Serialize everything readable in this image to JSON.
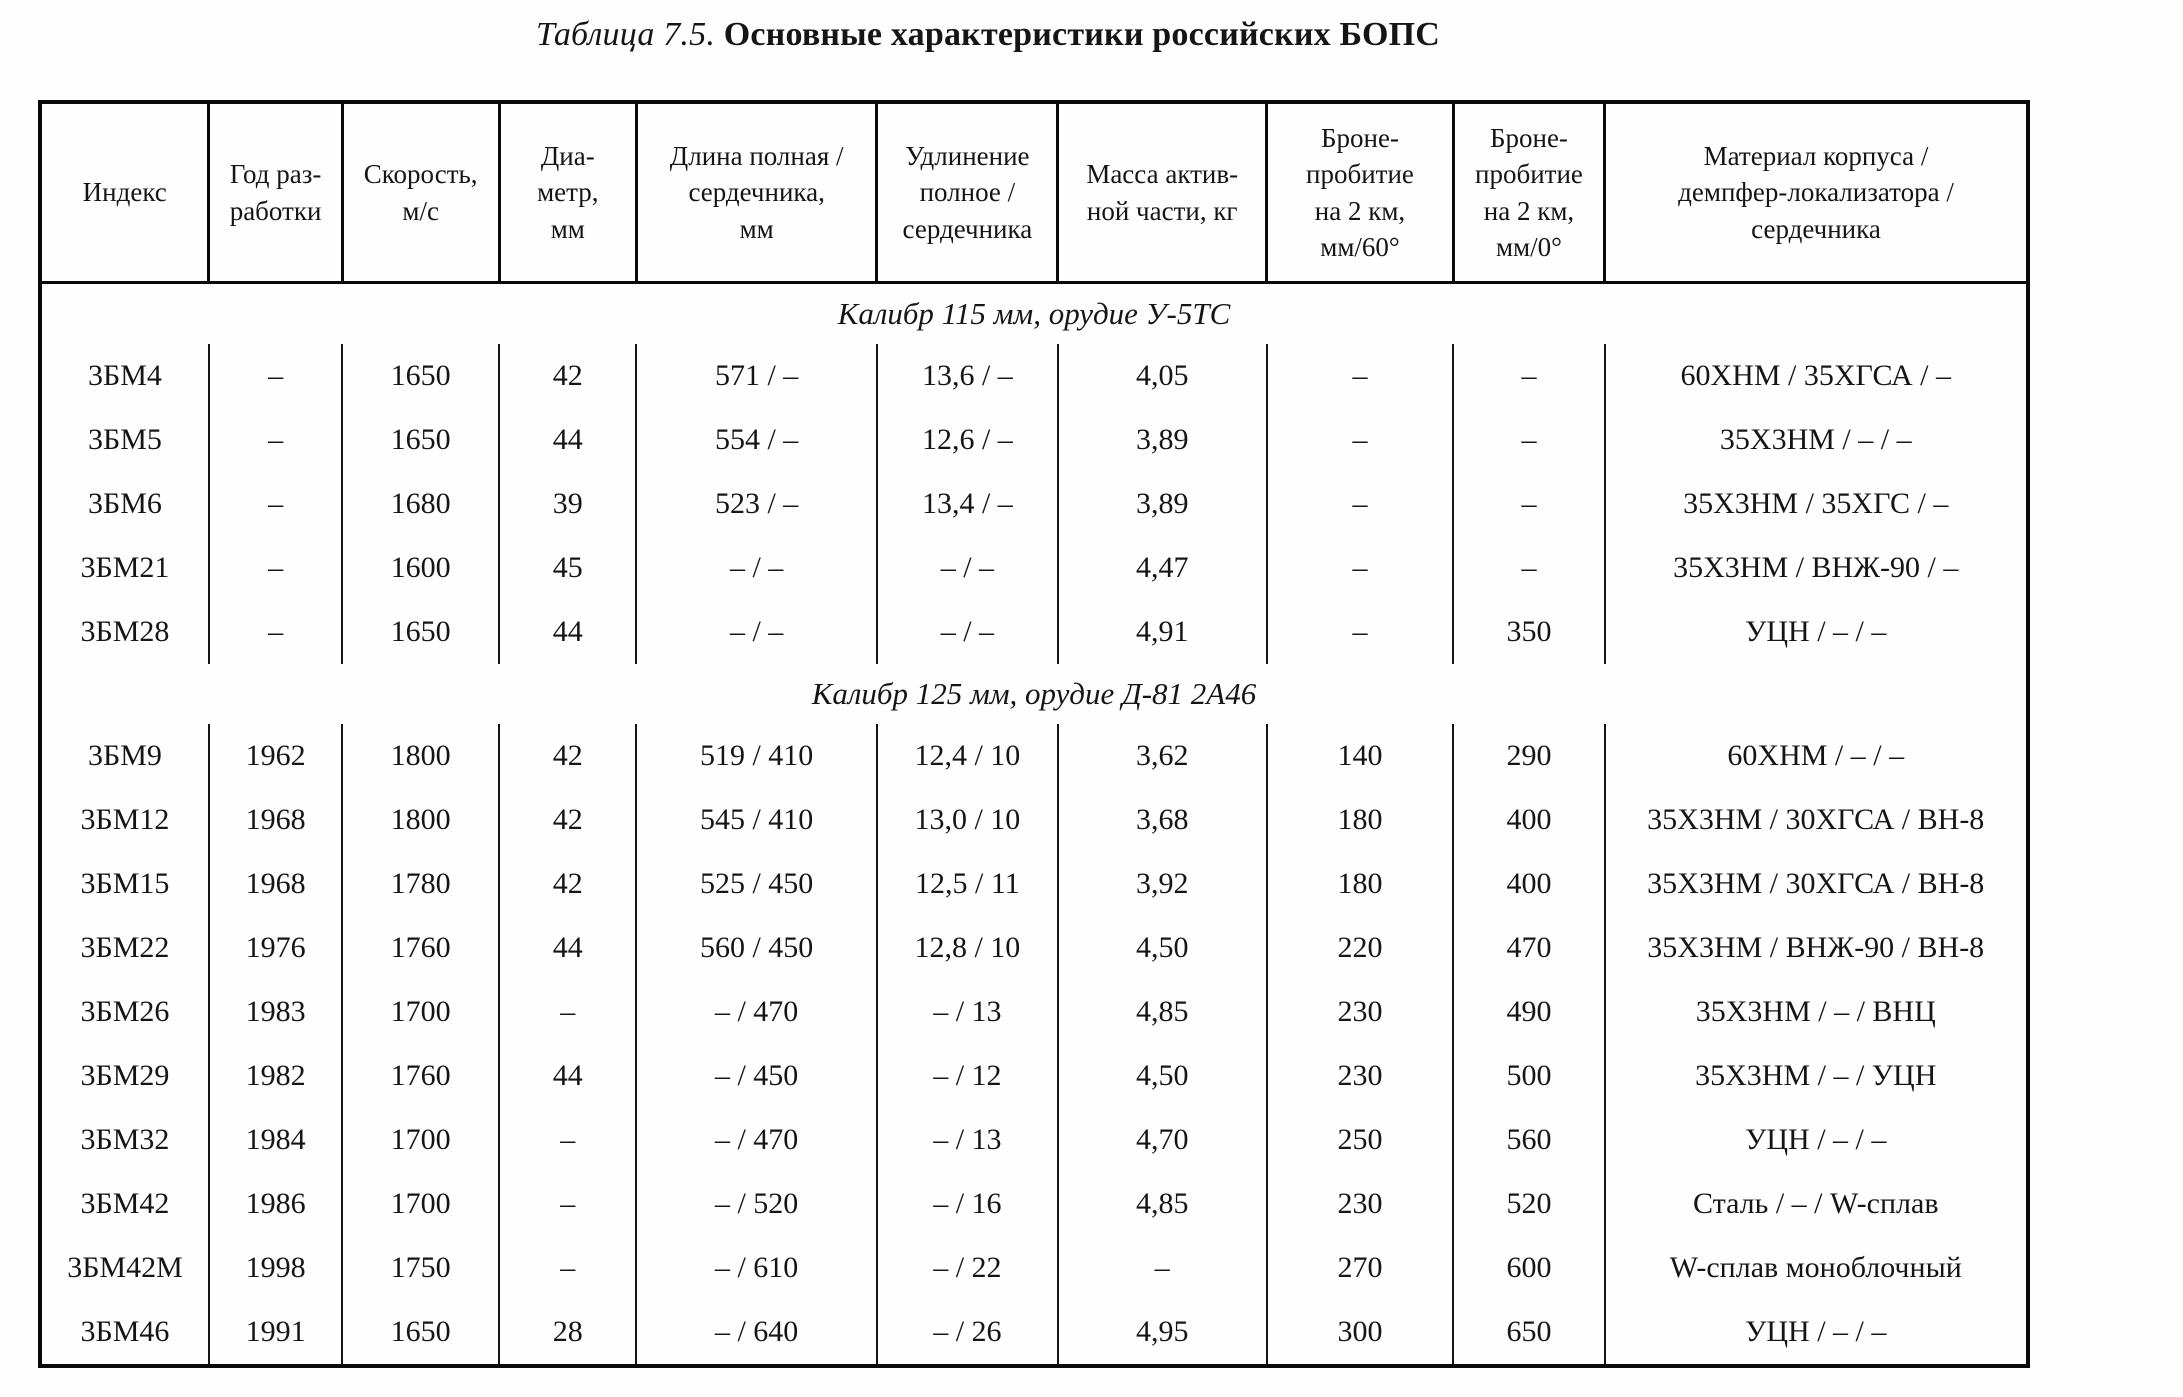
{
  "title": {
    "prefix": "Таблица 7.5.",
    "main": "Основные характеристики российских БОПС"
  },
  "table": {
    "columns": [
      "Индекс",
      "Год раз-\nработки",
      "Скорость,\nм/с",
      "Диа-\nметр,\nмм",
      "Длина полная /\nсердечника,\nмм",
      "Удлинение\nполное /\nсердечника",
      "Масса актив-\nной части, кг",
      "Броне-\nпробитие\nна 2 км,\nмм/60°",
      "Броне-\nпробитие\nна 2 км,\nмм/0°",
      "Материал корпуса /\nдемпфер-локализатора /\nсердечника"
    ],
    "sections": [
      {
        "label": "Калибр 115 мм, орудие У-5ТС",
        "rows": [
          [
            "3БМ4",
            "–",
            "1650",
            "42",
            "571 / –",
            "13,6 / –",
            "4,05",
            "–",
            "–",
            "60ХНМ / 35ХГСА / –"
          ],
          [
            "3БМ5",
            "–",
            "1650",
            "44",
            "554 / –",
            "12,6 / –",
            "3,89",
            "–",
            "–",
            "35Х3НМ / – / –"
          ],
          [
            "3БМ6",
            "–",
            "1680",
            "39",
            "523 / –",
            "13,4 / –",
            "3,89",
            "–",
            "–",
            "35Х3НМ / 35ХГС / –"
          ],
          [
            "3БМ21",
            "–",
            "1600",
            "45",
            "– / –",
            "– / –",
            "4,47",
            "–",
            "–",
            "35Х3НМ / ВНЖ-90 / –"
          ],
          [
            "3БМ28",
            "–",
            "1650",
            "44",
            "– / –",
            "– / –",
            "4,91",
            "–",
            "350",
            "УЦН / – / –"
          ]
        ]
      },
      {
        "label": "Калибр 125 мм, орудие Д-81 2А46",
        "rows": [
          [
            "3БМ9",
            "1962",
            "1800",
            "42",
            "519 / 410",
            "12,4 / 10",
            "3,62",
            "140",
            "290",
            "60ХНМ / – / –"
          ],
          [
            "3БМ12",
            "1968",
            "1800",
            "42",
            "545 / 410",
            "13,0 / 10",
            "3,68",
            "180",
            "400",
            "35Х3НМ / 30ХГСА / ВН-8"
          ],
          [
            "3БМ15",
            "1968",
            "1780",
            "42",
            "525 / 450",
            "12,5 / 11",
            "3,92",
            "180",
            "400",
            "35Х3НМ / 30ХГСА / ВН-8"
          ],
          [
            "3БМ22",
            "1976",
            "1760",
            "44",
            "560 / 450",
            "12,8 / 10",
            "4,50",
            "220",
            "470",
            "35Х3НМ / ВНЖ-90 / ВН-8"
          ],
          [
            "3БМ26",
            "1983",
            "1700",
            "–",
            "– / 470",
            "– / 13",
            "4,85",
            "230",
            "490",
            "35Х3НМ / – / ВНЦ"
          ],
          [
            "3БМ29",
            "1982",
            "1760",
            "44",
            "– / 450",
            "– / 12",
            "4,50",
            "230",
            "500",
            "35Х3НМ / – / УЦН"
          ],
          [
            "3БМ32",
            "1984",
            "1700",
            "–",
            "– / 470",
            "– / 13",
            "4,70",
            "250",
            "560",
            "УЦН / – / –"
          ],
          [
            "3БМ42",
            "1986",
            "1700",
            "–",
            "– / 520",
            "– / 16",
            "4,85",
            "230",
            "520",
            "Сталь / – / W-сплав"
          ],
          [
            "3БМ42М",
            "1998",
            "1750",
            "–",
            "– / 610",
            "– / 22",
            "–",
            "270",
            "600",
            "W-сплав моноблочный"
          ],
          [
            "3БМ46",
            "1991",
            "1650",
            "28",
            "– / 640",
            "– / 26",
            "4,95",
            "300",
            "650",
            "УЦН / – / –"
          ]
        ]
      }
    ]
  }
}
